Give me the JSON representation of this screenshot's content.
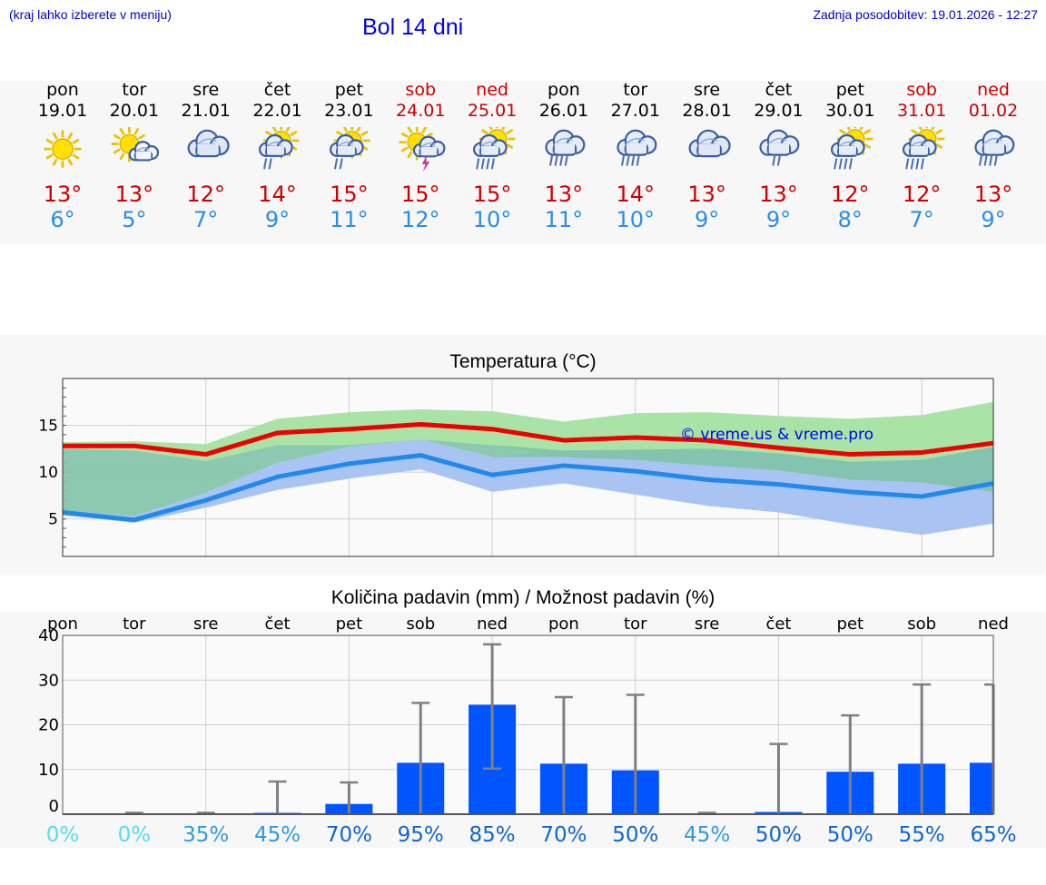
{
  "header": {
    "hint": "(kraj lahko izberete v meniju)",
    "title": "Bol 14 dni",
    "updated": "Zadnja posodobitev: 19.01.2026 - 12:27"
  },
  "days": [
    {
      "name": "pon",
      "date": "19.01",
      "weekend": false,
      "icon": "sun-icon",
      "max": "13°",
      "min": "6°"
    },
    {
      "name": "tor",
      "date": "20.01",
      "weekend": false,
      "icon": "sun-cloud-icon",
      "max": "13°",
      "min": "5°"
    },
    {
      "name": "sre",
      "date": "21.01",
      "weekend": false,
      "icon": "clouds-icon",
      "max": "12°",
      "min": "7°"
    },
    {
      "name": "čet",
      "date": "22.01",
      "weekend": false,
      "icon": "sun-cloud-rain-icon",
      "max": "14°",
      "min": "9°"
    },
    {
      "name": "pet",
      "date": "23.01",
      "weekend": false,
      "icon": "sun-cloud-rain-icon",
      "max": "15°",
      "min": "11°"
    },
    {
      "name": "sob",
      "date": "24.01",
      "weekend": true,
      "icon": "sun-cloud-thunder-icon",
      "max": "15°",
      "min": "12°"
    },
    {
      "name": "ned",
      "date": "25.01",
      "weekend": true,
      "icon": "sun-cloud-heavy-rain-icon",
      "max": "15°",
      "min": "10°"
    },
    {
      "name": "pon",
      "date": "26.01",
      "weekend": false,
      "icon": "cloud-heavy-rain-icon",
      "max": "13°",
      "min": "11°"
    },
    {
      "name": "tor",
      "date": "27.01",
      "weekend": false,
      "icon": "cloud-heavy-rain-icon",
      "max": "14°",
      "min": "10°"
    },
    {
      "name": "sre",
      "date": "28.01",
      "weekend": false,
      "icon": "clouds-icon",
      "max": "13°",
      "min": "9°"
    },
    {
      "name": "čet",
      "date": "29.01",
      "weekend": false,
      "icon": "cloud-rain-icon",
      "max": "13°",
      "min": "9°"
    },
    {
      "name": "pet",
      "date": "30.01",
      "weekend": false,
      "icon": "sun-cloud-heavy-rain-icon",
      "max": "12°",
      "min": "8°"
    },
    {
      "name": "sob",
      "date": "31.01",
      "weekend": true,
      "icon": "sun-cloud-heavy-rain-icon",
      "max": "12°",
      "min": "7°"
    },
    {
      "name": "ned",
      "date": "01.02",
      "weekend": true,
      "icon": "cloud-heavy-rain-icon",
      "max": "13°",
      "min": "9°"
    }
  ],
  "colors": {
    "max": "#cc0000",
    "min": "#2a8de8",
    "max_line": "#ee0000",
    "min_line": "#2288ee",
    "max_band": "#a9e3a5",
    "min_band": "#a9c4f2",
    "overlap_band": "#7fc3a7",
    "bar": "#0055ff",
    "whisker": "#808080",
    "watermark": "#0000ee"
  },
  "chart_data": [
    {
      "type": "line",
      "title": "Temperatura (°C)",
      "xlabel": "",
      "ylabel": "",
      "ylim": [
        1,
        20
      ],
      "yticks": [
        5,
        10,
        15
      ],
      "grid": true,
      "watermark": "© vreme.us & vreme.pro",
      "x": [
        0,
        1,
        2,
        3,
        4,
        5,
        6,
        7,
        8,
        9,
        10,
        11,
        12,
        13
      ],
      "series": [
        {
          "name": "max",
          "values": [
            12.8,
            12.8,
            11.9,
            14.2,
            14.6,
            15.1,
            14.6,
            13.4,
            13.7,
            13.4,
            12.6,
            11.9,
            12.1,
            13.1
          ]
        },
        {
          "name": "min",
          "values": [
            5.7,
            4.9,
            7.0,
            9.5,
            10.9,
            11.8,
            9.7,
            10.7,
            10.1,
            9.2,
            8.7,
            7.9,
            7.4,
            8.8
          ]
        },
        {
          "name": "max_band_low",
          "values": [
            12.5,
            12.3,
            11.2,
            12.9,
            12.9,
            13.5,
            12.9,
            11.6,
            11.3,
            10.7,
            10.2,
            9.2,
            8.9,
            7.9
          ]
        },
        {
          "name": "max_band_high",
          "values": [
            13.2,
            13.3,
            13.0,
            15.7,
            16.4,
            16.7,
            16.5,
            15.4,
            16.3,
            16.4,
            16.0,
            15.7,
            16.1,
            17.5
          ]
        },
        {
          "name": "min_band_low",
          "values": [
            5.4,
            4.6,
            6.2,
            8.1,
            9.3,
            10.3,
            7.9,
            8.8,
            7.6,
            6.4,
            5.7,
            4.4,
            3.3,
            4.5
          ]
        },
        {
          "name": "min_band_high",
          "values": [
            5.9,
            5.3,
            7.8,
            11.0,
            12.7,
            13.5,
            11.6,
            12.3,
            12.4,
            12.5,
            12.0,
            11.1,
            11.3,
            12.7
          ]
        }
      ]
    },
    {
      "type": "bar",
      "title": "Količina padavin (mm) / Možnost padavin (%)",
      "xlabel": "",
      "ylabel": "",
      "ylim": [
        0,
        40
      ],
      "yticks": [
        0,
        10,
        20,
        30,
        40
      ],
      "grid": true,
      "categories": [
        "pon",
        "tor",
        "sre",
        "čet",
        "pet",
        "sob",
        "ned",
        "pon",
        "tor",
        "sre",
        "čet",
        "pet",
        "sob",
        "ned"
      ],
      "values": [
        0,
        0,
        0,
        0.3,
        2.3,
        11.5,
        24.5,
        11.3,
        9.8,
        0,
        0.5,
        9.5,
        11.3,
        11.5
      ],
      "error_high": [
        0,
        0.3,
        0.3,
        7.3,
        7.1,
        24.9,
        38.0,
        26.2,
        26.7,
        0.3,
        15.7,
        22.1,
        29.0,
        29.0
      ],
      "error_low": [
        0,
        0,
        0,
        0,
        0,
        0,
        10.2,
        0,
        0,
        0,
        0,
        0,
        0,
        0
      ],
      "probabilities": [
        "0%",
        "0%",
        "35%",
        "45%",
        "70%",
        "95%",
        "85%",
        "70%",
        "50%",
        "45%",
        "50%",
        "50%",
        "55%",
        "65%"
      ],
      "probability_colors": [
        "#55ddee",
        "#55ddee",
        "#3399dd",
        "#3399dd",
        "#1166cc",
        "#1166cc",
        "#1166cc",
        "#1166cc",
        "#1166cc",
        "#3399dd",
        "#1166cc",
        "#1166cc",
        "#1166cc",
        "#1166cc"
      ]
    }
  ]
}
